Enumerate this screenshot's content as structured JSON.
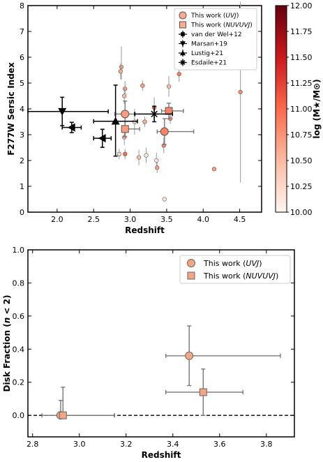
{
  "chart_data": [
    {
      "type": "scatter",
      "xlabel": "Redshift",
      "ylabel": "F277W Sersic Index",
      "xlim": [
        1.6,
        4.8
      ],
      "ylim": [
        0,
        8
      ],
      "xticks": [
        "2.0",
        "2.5",
        "3.0",
        "3.5",
        "4.0",
        "4.5"
      ],
      "yticks": [
        "0",
        "1",
        "2",
        "3",
        "4",
        "5",
        "6",
        "7",
        "8"
      ],
      "legend_position": "top-right",
      "legend": [
        "This work (UVJ)",
        "This work (NUVUVJ)",
        "van der Wel+12",
        "Marsan+19",
        "Lustig+21",
        "Esdaile+21"
      ],
      "legend_parts": [
        [
          "This work (",
          "UVJ",
          ")"
        ],
        [
          "This work (",
          "NUVUVJ",
          ")"
        ],
        [
          "van der Wel+12",
          "",
          ""
        ],
        [
          "Marsan+19",
          "",
          ""
        ],
        [
          "Lustig+21",
          "",
          ""
        ],
        [
          "Esdaile+21",
          "",
          ""
        ]
      ],
      "colorbar": {
        "label": "log (M★/M⊙)",
        "range": [
          10.0,
          12.0
        ],
        "ticks": [
          "10.00",
          "10.25",
          "10.50",
          "10.75",
          "11.00",
          "11.25",
          "11.50",
          "11.75",
          "12.00"
        ],
        "colormap": [
          "#fff5f0",
          "#fcbba1",
          "#fb6a4a",
          "#cb181d",
          "#67000d"
        ]
      },
      "series": [
        {
          "marker": "small-circle",
          "points": [
            {
              "x": 2.88,
              "y": 5.62,
              "yerr": [
                0.5,
                0.8
              ],
              "mass": 10.7
            },
            {
              "x": 2.87,
              "y": 5.45,
              "yerr": [
                0.3,
                0.3
              ],
              "mass": 10.6
            },
            {
              "x": 2.93,
              "y": 4.78,
              "yerr": [
                0.3,
                0.3
              ],
              "mass": 10.7
            },
            {
              "x": 2.92,
              "y": 4.5,
              "yerr": [
                0.3,
                0.3
              ],
              "mass": 10.5
            },
            {
              "x": 2.92,
              "y": 2.9,
              "yerr": [
                0.3,
                0.3
              ],
              "mass": 10.6
            },
            {
              "x": 2.93,
              "y": 2.25,
              "yerr": [
                0.2,
                0.2
              ],
              "mass": 11.0
            },
            {
              "x": 2.85,
              "y": 2.25,
              "yerr": [
                0.2,
                0.2
              ],
              "mass": 10.3
            },
            {
              "x": 3.06,
              "y": 3.5,
              "yerr": [
                0.5,
                0.5
              ],
              "mass": 10.2
            },
            {
              "x": 3.12,
              "y": 2.12,
              "yerr": [
                0.3,
                0.3
              ],
              "mass": 10.5
            },
            {
              "x": 3.17,
              "y": 4.9,
              "yerr": [
                0.2,
                0.2
              ],
              "mass": 10.7
            },
            {
              "x": 3.2,
              "y": 3.5,
              "yerr": [
                0.2,
                0.2
              ],
              "mass": 10.6
            },
            {
              "x": 3.22,
              "y": 2.2,
              "yerr": [
                0.3,
                0.3
              ],
              "mass": 10.1
            },
            {
              "x": 3.33,
              "y": 4.05,
              "yerr": [
                0.4,
                0.4
              ],
              "mass": 10.9
            },
            {
              "x": 3.36,
              "y": 2.0,
              "yerr": [
                0.3,
                0.3
              ],
              "mass": 10.1
            },
            {
              "x": 3.37,
              "y": 1.72,
              "yerr": [
                0.2,
                0.2
              ],
              "mass": 10.7
            },
            {
              "x": 3.47,
              "y": 0.5,
              "yerr": [
                0.0,
                0.0
              ],
              "mass": 10.1
            },
            {
              "x": 3.53,
              "y": 4.87,
              "yerr": [
                0.4,
                0.4
              ],
              "mass": 10.5
            },
            {
              "x": 3.55,
              "y": 3.62,
              "yerr": [
                0.2,
                0.2
              ],
              "mass": 10.8
            },
            {
              "x": 3.46,
              "y": 2.58,
              "yerr": [
                0.3,
                0.3
              ],
              "mass": 10.8
            },
            {
              "x": 3.67,
              "y": 5.35,
              "yerr": [
                0.3,
                0.3
              ],
              "mass": 10.9
            },
            {
              "x": 4.15,
              "y": 1.67,
              "yerr": [
                0.0,
                0.0
              ],
              "mass": 10.7
            },
            {
              "x": 4.51,
              "y": 4.65,
              "yerr": [
                3.5,
                3.5
              ],
              "mass": 10.8
            }
          ]
        },
        {
          "marker": "big-circle",
          "name": "This work (UVJ)",
          "points": [
            {
              "x": 2.93,
              "y": 3.8,
              "xerr": [
                0.14,
                0.14
              ],
              "yerr": [
                0.5,
                0.5
              ],
              "mass": 10.7
            },
            {
              "x": 3.47,
              "y": 3.12,
              "xerr": [
                0.1,
                0.4
              ],
              "yerr": [
                0.5,
                0.5
              ],
              "mass": 10.85
            }
          ]
        },
        {
          "marker": "big-square",
          "name": "This work (NUVUVJ)",
          "points": [
            {
              "x": 2.93,
              "y": 3.22,
              "xerr": [
                0.0,
                0.2
              ],
              "yerr": [
                0.3,
                0.3
              ],
              "mass": 10.7
            },
            {
              "x": 3.53,
              "y": 3.92,
              "xerr": [
                0.1,
                0.2
              ],
              "yerr": [
                0.3,
                0.3
              ],
              "mass": 10.85
            }
          ]
        },
        {
          "marker": "sq-arrow",
          "name": "van der Wel+12",
          "points": []
        },
        {
          "marker": "tri-down",
          "name": "Marsan+19",
          "points": [
            {
              "x": 2.07,
              "y": 3.9,
              "xerr": [
                0.47,
                0.63
              ],
              "yerr": [
                0.55,
                0.55
              ]
            }
          ]
        },
        {
          "marker": "tri-up",
          "name": "Lustig+21",
          "points": [
            {
              "x": 2.8,
              "y": 3.52,
              "xerr": [
                0.3,
                0.3
              ],
              "yerr": [
                1.35,
                1.4
              ]
            }
          ]
        },
        {
          "marker": "tri-left",
          "name": "",
          "points": [
            {
              "x": 2.2,
              "y": 3.28,
              "xerr": [
                0.13,
                0.13
              ],
              "yerr": [
                0.2,
                0.2
              ]
            },
            {
              "x": 2.62,
              "y": 2.86,
              "xerr": [
                0.12,
                0.12
              ],
              "yerr": [
                0.35,
                0.35
              ]
            }
          ]
        },
        {
          "marker": "asterisk",
          "name": "Esdaile+21",
          "points": [
            {
              "x": 3.33,
              "y": 3.8,
              "xerr": [
                0.27,
                0.25
              ],
              "yerr": [
                0.3,
                0.3
              ]
            }
          ]
        }
      ]
    },
    {
      "type": "scatter",
      "xlabel": "Redshift",
      "ylabel": "Disk Fraction (n < 2)",
      "ylabel_parts": [
        "Disk Fraction (",
        "n",
        " < 2)"
      ],
      "xlim": [
        2.78,
        3.92
      ],
      "ylim": [
        -0.13,
        1.0
      ],
      "xticks": [
        "2.8",
        "3.0",
        "3.2",
        "3.4",
        "3.6",
        "3.8"
      ],
      "yticks": [
        "0.0",
        "0.2",
        "0.4",
        "0.6",
        "0.8",
        "1.0"
      ],
      "hline": 0.0,
      "legend_position": "top-right",
      "legend": [
        "This work (UVJ)",
        "This work (NUVUVJ)"
      ],
      "legend_parts": [
        [
          "This work (",
          "UVJ",
          ")"
        ],
        [
          "This work (",
          "NUVUVJ",
          ")"
        ]
      ],
      "series": [
        {
          "name": "This work (UVJ)",
          "marker": "circle",
          "points": [
            {
              "x": 2.92,
              "y": 0.0,
              "xerr": [
                0.08,
                0.23
              ],
              "yerr": [
                0.0,
                0.09
              ]
            },
            {
              "x": 3.47,
              "y": 0.36,
              "xerr": [
                0.1,
                0.39
              ],
              "yerr": [
                0.18,
                0.18
              ]
            }
          ]
        },
        {
          "name": "This work (NUVUVJ)",
          "marker": "square",
          "points": [
            {
              "x": 2.93,
              "y": 0.0,
              "xerr": [
                0.0,
                0.22
              ],
              "yerr": [
                0.0,
                0.17
              ]
            },
            {
              "x": 3.53,
              "y": 0.14,
              "xerr": [
                0.16,
                0.17
              ],
              "yerr": [
                0.14,
                0.14
              ]
            }
          ]
        }
      ]
    }
  ]
}
